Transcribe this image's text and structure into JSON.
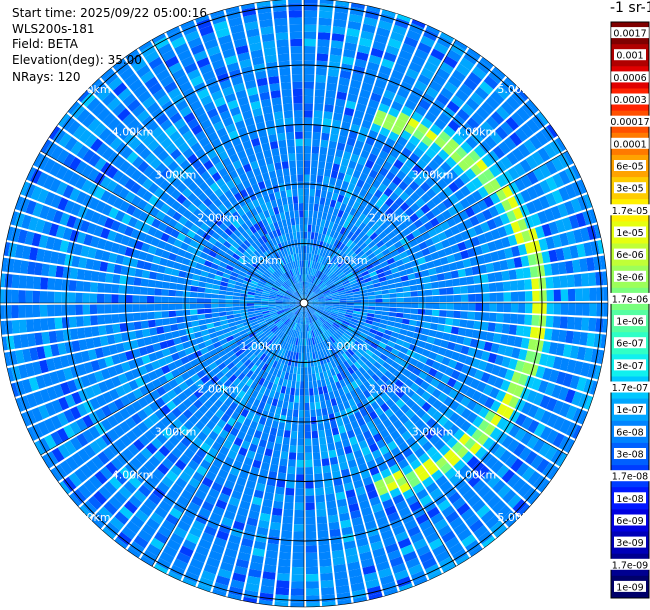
{
  "info": {
    "start_time": "Start time: 2025/09/22 05:00:16",
    "station": "WLS200s-181",
    "field": "Field: BETA",
    "elevation": "Elevation(deg): 35.00",
    "nrays": "NRays: 120"
  },
  "colorbar": {
    "title": "-1 sr-1",
    "labels": [
      "0.0017",
      "0.001",
      "0.0006",
      "0.0003",
      "0.00017",
      "0.0001",
      "6e-05",
      "3e-05",
      "1.7e-05",
      "1e-05",
      "6e-06",
      "3e-06",
      "1.7e-06",
      "1e-06",
      "6e-07",
      "3e-07",
      "1.7e-07",
      "1e-07",
      "6e-08",
      "3e-08",
      "1.7e-08",
      "1e-08",
      "6e-09",
      "3e-09",
      "1.7e-09",
      "1e-09"
    ],
    "colors": [
      "#7f0000",
      "#b00000",
      "#e00000",
      "#ff2200",
      "#ff5000",
      "#ff7a00",
      "#ffa300",
      "#ffcc00",
      "#fff000",
      "#e6ff10",
      "#c0ff37",
      "#9cff5a",
      "#7aff7d",
      "#55ffa2",
      "#30ffc6",
      "#10f0ee",
      "#00c8ff",
      "#00a6ff",
      "#0084ff",
      "#0060ff",
      "#003cff",
      "#0018ff",
      "#0000e0",
      "#0000b8",
      "#000090",
      "#00006a"
    ]
  },
  "chart_data": {
    "type": "heatmap",
    "projection": "polar PPI scan",
    "field": "BETA",
    "elevation_deg": 35.0,
    "n_rays": 120,
    "range_rings_km": [
      1,
      2,
      3,
      4,
      5
    ],
    "ring_labels": [
      "1.00km",
      "2.00km",
      "3.00km",
      "4.00km",
      "5.00km"
    ],
    "max_range_km": 5.6,
    "background_level": "3e-08 to 1e-07",
    "feature": {
      "description": "arc of elevated backscatter",
      "range_km": [
        3.3,
        4.0
      ],
      "azimuth_deg": [
        20,
        160
      ],
      "level": "1e-06 to 1e-05"
    },
    "grid": true
  }
}
